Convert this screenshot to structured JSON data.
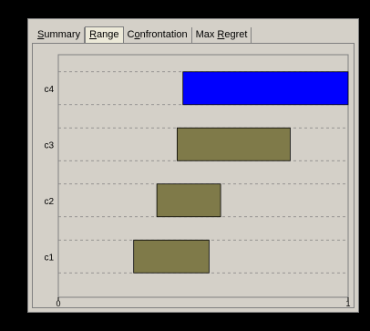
{
  "tabs": [
    {
      "label": "Summary",
      "underline_index": 0,
      "active": false
    },
    {
      "label": "Range",
      "underline_index": 0,
      "active": true
    },
    {
      "label": "Confrontation",
      "underline_index": 1,
      "active": false
    },
    {
      "label": "Max Regret",
      "underline_index": 4,
      "active": false
    }
  ],
  "chart_data": {
    "type": "bar",
    "orientation": "horizontal",
    "categories": [
      "c1",
      "c2",
      "c3",
      "c4"
    ],
    "ranges": [
      {
        "category": "c1",
        "low": 0.26,
        "high": 0.52,
        "color": "#7f7a49"
      },
      {
        "category": "c2",
        "low": 0.34,
        "high": 0.56,
        "color": "#7f7a49"
      },
      {
        "category": "c3",
        "low": 0.41,
        "high": 0.8,
        "color": "#7f7a49"
      },
      {
        "category": "c4",
        "low": 0.43,
        "high": 1.0,
        "color": "#0000ff"
      }
    ],
    "xlim": [
      0,
      1
    ],
    "x_ticks": [
      "0",
      "1"
    ],
    "grid": "dashed"
  }
}
